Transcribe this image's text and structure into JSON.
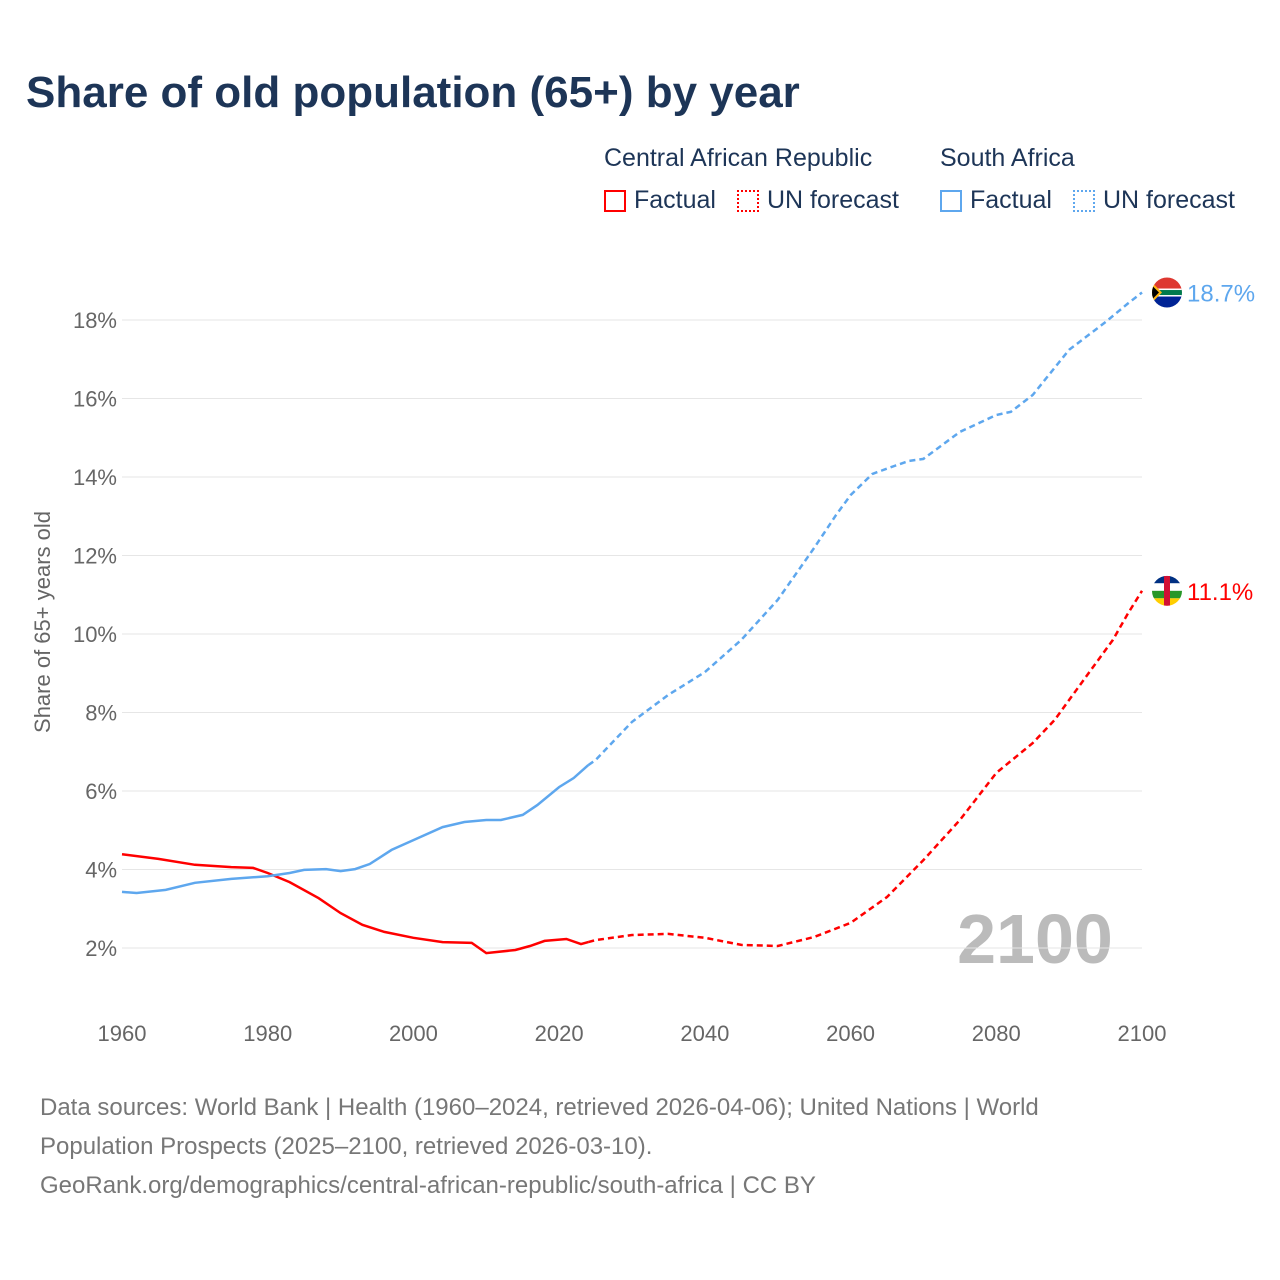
{
  "title": "Share of old population (65+) by year",
  "legend": {
    "groups": [
      {
        "name": "Central African Republic",
        "factual": "Factual",
        "forecast": "UN forecast",
        "color": "#ff0000"
      },
      {
        "name": "South Africa",
        "factual": "Factual",
        "forecast": "UN forecast",
        "color": "#5ea7ee"
      }
    ]
  },
  "footer": {
    "line1": "Data sources: World Bank | Health (1960–2024, retrieved 2026-04-06); United Nations | World",
    "line2": "Population Prospects (2025–2100, retrieved 2026-03-10).",
    "line3": "GeoRank.org/demographics/central-african-republic/south-africa | CC BY"
  },
  "chart_data": {
    "type": "line",
    "title": "Share of old population (65+) by year",
    "ylabel": "Share of 65+ years old",
    "xlim": [
      1960,
      2100
    ],
    "ylim": [
      0,
      19
    ],
    "x_ticks": [
      "1960",
      "1980",
      "2000",
      "2020",
      "2040",
      "2060",
      "2080",
      "2100"
    ],
    "y_ticks": [
      "2%",
      "4%",
      "6%",
      "8%",
      "10%",
      "12%",
      "14%",
      "16%",
      "18%"
    ],
    "year_watermark": "2100",
    "forecast_start": 2024,
    "series": [
      {
        "name": "Central African Republic",
        "color": "#ff0000",
        "end_label": "11.1%",
        "points": [
          [
            1960,
            4.39
          ],
          [
            1965,
            4.27
          ],
          [
            1970,
            4.12
          ],
          [
            1975,
            4.06
          ],
          [
            1978,
            4.04
          ],
          [
            1980,
            3.91
          ],
          [
            1983,
            3.68
          ],
          [
            1987,
            3.27
          ],
          [
            1990,
            2.89
          ],
          [
            1993,
            2.59
          ],
          [
            1996,
            2.41
          ],
          [
            2000,
            2.26
          ],
          [
            2004,
            2.15
          ],
          [
            2008,
            2.13
          ],
          [
            2010,
            1.87
          ],
          [
            2014,
            1.95
          ],
          [
            2016,
            2.05
          ],
          [
            2018,
            2.18
          ],
          [
            2021,
            2.23
          ],
          [
            2023,
            2.1
          ],
          [
            2024,
            2.15
          ],
          [
            2025,
            2.2
          ],
          [
            2030,
            2.33
          ],
          [
            2035,
            2.36
          ],
          [
            2040,
            2.26
          ],
          [
            2045,
            2.08
          ],
          [
            2050,
            2.05
          ],
          [
            2055,
            2.28
          ],
          [
            2060,
            2.64
          ],
          [
            2065,
            3.3
          ],
          [
            2070,
            4.24
          ],
          [
            2075,
            5.26
          ],
          [
            2080,
            6.46
          ],
          [
            2085,
            7.22
          ],
          [
            2088,
            7.81
          ],
          [
            2092,
            8.83
          ],
          [
            2096,
            9.85
          ],
          [
            2098,
            10.5
          ],
          [
            2100,
            11.1
          ]
        ]
      },
      {
        "name": "South Africa",
        "color": "#5ea7ee",
        "end_label": "18.7%",
        "points": [
          [
            1960,
            3.43
          ],
          [
            1962,
            3.4
          ],
          [
            1966,
            3.48
          ],
          [
            1970,
            3.66
          ],
          [
            1975,
            3.76
          ],
          [
            1980,
            3.83
          ],
          [
            1983,
            3.91
          ],
          [
            1985,
            3.99
          ],
          [
            1988,
            4.01
          ],
          [
            1990,
            3.96
          ],
          [
            1992,
            4.01
          ],
          [
            1994,
            4.14
          ],
          [
            1997,
            4.5
          ],
          [
            2000,
            4.75
          ],
          [
            2004,
            5.08
          ],
          [
            2007,
            5.21
          ],
          [
            2010,
            5.26
          ],
          [
            2012,
            5.26
          ],
          [
            2015,
            5.39
          ],
          [
            2017,
            5.64
          ],
          [
            2020,
            6.1
          ],
          [
            2022,
            6.33
          ],
          [
            2024,
            6.66
          ],
          [
            2025,
            6.79
          ],
          [
            2030,
            7.76
          ],
          [
            2035,
            8.45
          ],
          [
            2040,
            9.03
          ],
          [
            2045,
            9.85
          ],
          [
            2050,
            10.87
          ],
          [
            2055,
            12.19
          ],
          [
            2058,
            13.03
          ],
          [
            2060,
            13.54
          ],
          [
            2063,
            14.08
          ],
          [
            2066,
            14.28
          ],
          [
            2068,
            14.41
          ],
          [
            2070,
            14.46
          ],
          [
            2075,
            15.15
          ],
          [
            2080,
            15.58
          ],
          [
            2082,
            15.66
          ],
          [
            2085,
            16.09
          ],
          [
            2090,
            17.24
          ],
          [
            2095,
            17.95
          ],
          [
            2098,
            18.41
          ],
          [
            2100,
            18.7
          ]
        ]
      }
    ]
  }
}
